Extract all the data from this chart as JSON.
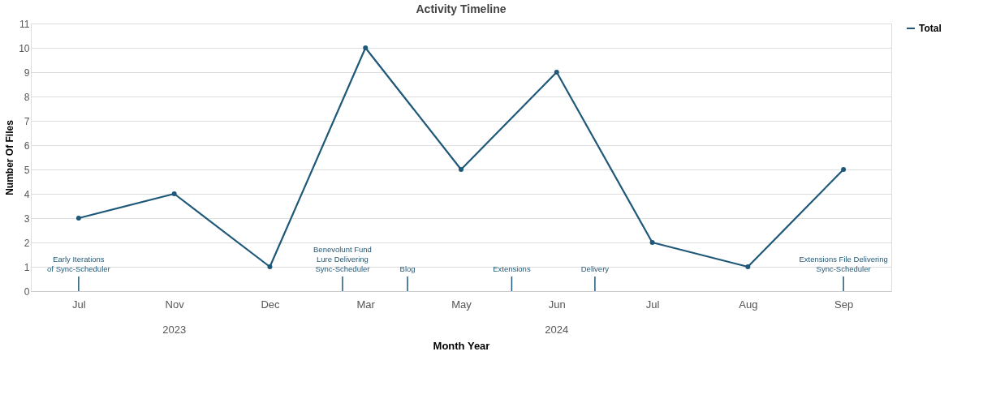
{
  "chart_data": {
    "type": "line",
    "title": "Activity Timeline",
    "xlabel": "Month Year",
    "ylabel": "Number Of Files",
    "categories": [
      "Jul",
      "Nov",
      "Dec",
      "Mar",
      "May",
      "Jun",
      "Jul",
      "Aug",
      "Sep"
    ],
    "series": [
      {
        "name": "Total",
        "color": "#1f5878",
        "values": [
          3,
          4,
          1,
          10,
          5,
          9,
          2,
          1,
          5
        ]
      }
    ],
    "ylim": [
      0,
      11
    ],
    "yticks": [
      0,
      1,
      2,
      3,
      4,
      5,
      6,
      7,
      8,
      9,
      10,
      11
    ],
    "grid": "y",
    "legend": "right",
    "marker": "circle",
    "line_style": "solid",
    "annotations": [
      "Early Iterations\nof Sync-Scheduler",
      "Benevolunt Fund\nLure Delivering\nSync-Scheduler",
      "Blog",
      "Extensions",
      "Delivery",
      "Extensions File Delivering\nSync-Scheduler",
      "2023",
      "2024"
    ]
  }
}
